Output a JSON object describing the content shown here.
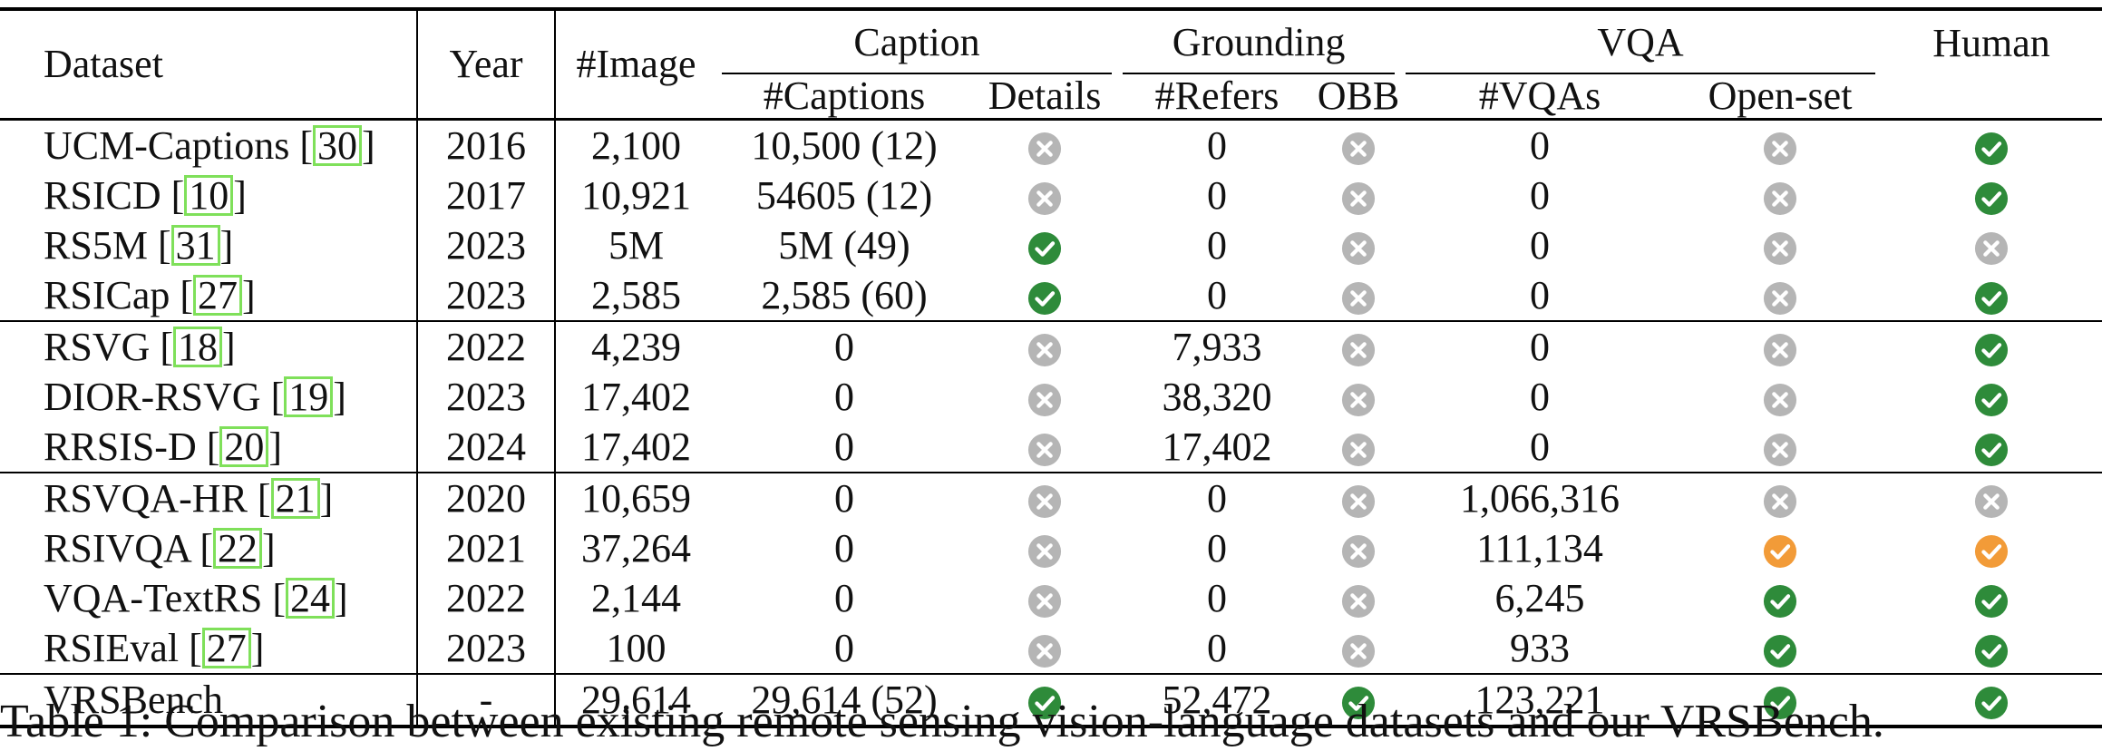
{
  "header": {
    "dataset": "Dataset",
    "year": "Year",
    "image": "#Image",
    "caption_group": "Caption",
    "grounding_group": "Grounding",
    "vqa_group": "VQA",
    "human": "Human",
    "captions": "#Captions",
    "details": "Details",
    "refers": "#Refers",
    "obb": "OBB",
    "vqas": "#VQAs",
    "openset": "Open-set"
  },
  "icon_legend": {
    "yes": "check-icon (green)",
    "partial": "check-icon (orange)",
    "no": "cross-icon (gray)"
  },
  "colors": {
    "yes": "#2e8b3a",
    "partial": "#f29b38",
    "no": "#b5b5b5",
    "ref_box": "#7fe05a"
  },
  "groups": [
    {
      "rows": [
        {
          "name": "UCM-Captions [",
          "ref": "30",
          "year": "2016",
          "images": "2,100",
          "captions": "10,500 (12)",
          "details": "no",
          "refers": "0",
          "obb": "no",
          "vqas": "0",
          "openset": "no",
          "human": "yes"
        },
        {
          "name": "RSICD [",
          "ref": "10",
          "year": "2017",
          "images": "10,921",
          "captions": "54605 (12)",
          "details": "no",
          "refers": "0",
          "obb": "no",
          "vqas": "0",
          "openset": "no",
          "human": "yes"
        },
        {
          "name": "RS5M [",
          "ref": "31",
          "year": "2023",
          "images": "5M",
          "captions": "5M (49)",
          "details": "yes",
          "refers": "0",
          "obb": "no",
          "vqas": "0",
          "openset": "no",
          "human": "no"
        },
        {
          "name": "RSICap [",
          "ref": "27",
          "year": "2023",
          "images": "2,585",
          "captions": "2,585 (60)",
          "details": "yes",
          "refers": "0",
          "obb": "no",
          "vqas": "0",
          "openset": "no",
          "human": "yes"
        }
      ]
    },
    {
      "rows": [
        {
          "name": "RSVG [",
          "ref": "18",
          "year": "2022",
          "images": "4,239",
          "captions": "0",
          "details": "no",
          "refers": "7,933",
          "obb": "no",
          "vqas": "0",
          "openset": "no",
          "human": "yes"
        },
        {
          "name": "DIOR-RSVG [",
          "ref": "19",
          "year": "2023",
          "images": "17,402",
          "captions": "0",
          "details": "no",
          "refers": "38,320",
          "obb": "no",
          "vqas": "0",
          "openset": "no",
          "human": "yes"
        },
        {
          "name": "RRSIS-D [",
          "ref": "20",
          "year": "2024",
          "images": "17,402",
          "captions": "0",
          "details": "no",
          "refers": "17,402",
          "obb": "no",
          "vqas": "0",
          "openset": "no",
          "human": "yes"
        }
      ]
    },
    {
      "rows": [
        {
          "name": "RSVQA-HR [",
          "ref": "21",
          "year": "2020",
          "images": "10,659",
          "captions": "0",
          "details": "no",
          "refers": "0",
          "obb": "no",
          "vqas": "1,066,316",
          "openset": "no",
          "human": "no"
        },
        {
          "name": "RSIVQA [",
          "ref": "22",
          "year": "2021",
          "images": "37,264",
          "captions": "0",
          "details": "no",
          "refers": "0",
          "obb": "no",
          "vqas": "111,134",
          "openset": "partial",
          "human": "partial"
        },
        {
          "name": "VQA-TextRS [",
          "ref": "24",
          "year": "2022",
          "images": "2,144",
          "captions": "0",
          "details": "no",
          "refers": "0",
          "obb": "no",
          "vqas": "6,245",
          "openset": "yes",
          "human": "yes"
        },
        {
          "name": "RSIEval [",
          "ref": "27",
          "year": "2023",
          "images": "100",
          "captions": "0",
          "details": "no",
          "refers": "0",
          "obb": "no",
          "vqas": "933",
          "openset": "yes",
          "human": "yes"
        }
      ]
    },
    {
      "rows": [
        {
          "name": "VRSBench",
          "ref": "",
          "year": "-",
          "images": "29,614",
          "captions": "29,614 (52)",
          "details": "yes",
          "refers": "52,472",
          "obb": "yes",
          "vqas": "123,221",
          "openset": "yes",
          "human": "yes"
        }
      ]
    }
  ],
  "caption_text": "Table 1: Comparison between existing remote sensing vision-language datasets and our VRSBench."
}
